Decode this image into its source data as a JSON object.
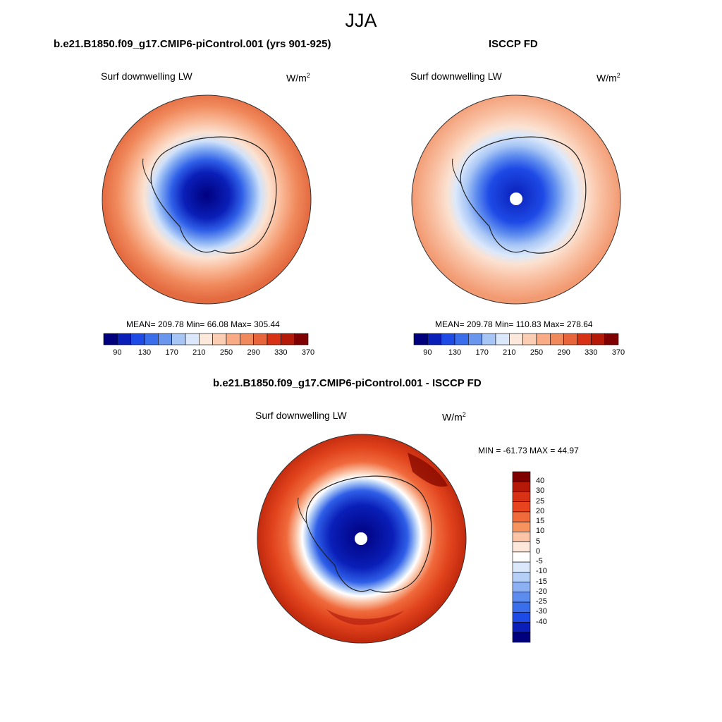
{
  "main_title": "JJA",
  "colors": {
    "deep_blue": "#00007f",
    "mid_blue": "#1e4ae6",
    "light_blue": "#a8c6f5",
    "pale": "#fbe2d2",
    "orange": "#f08a5d",
    "red": "#d73216",
    "dark_red": "#7f0000"
  },
  "panels": [
    {
      "title": "b.e21.B1850.f09_g17.CMIP6-piControl.001 (yrs 901-925)",
      "variable": "Surf downwelling LW",
      "units_base": "W/m",
      "units_exp": "2",
      "stats": "MEAN= 209.78  Min=  66.08  Max= 305.44",
      "colorbar_ticks": [
        "90",
        "130",
        "170",
        "210",
        "250",
        "290",
        "330",
        "370"
      ]
    },
    {
      "title": "ISCCP FD",
      "variable": "Surf downwelling LW",
      "units_base": "W/m",
      "units_exp": "2",
      "stats": "MEAN= 209.78  Min= 110.83  Max= 278.64",
      "colorbar_ticks": [
        "90",
        "130",
        "170",
        "210",
        "250",
        "290",
        "330",
        "370"
      ]
    },
    {
      "title": "b.e21.B1850.f09_g17.CMIP6-piControl.001 - ISCCP FD",
      "variable": "Surf downwelling LW",
      "units_base": "W/m",
      "units_exp": "2",
      "stats": "MIN = -61.73 MAX =  44.97",
      "colorbar_ticks": [
        "40",
        "30",
        "25",
        "20",
        "15",
        "10",
        "5",
        "0",
        "-5",
        "-10",
        "-15",
        "-20",
        "-25",
        "-30",
        "-40"
      ]
    }
  ]
}
